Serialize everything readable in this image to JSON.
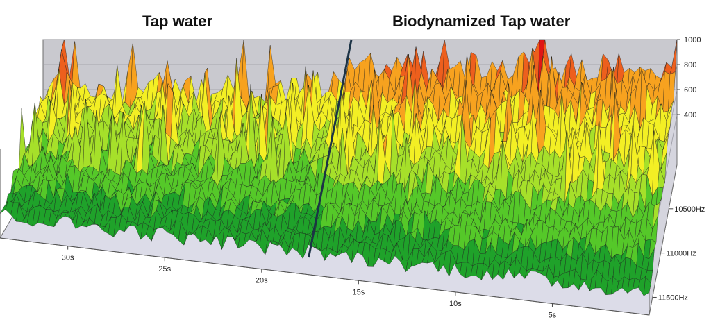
{
  "panels": {
    "left_title": "Tap water",
    "right_title": "Biodynamized Tap water"
  },
  "chart_data": {
    "type": "surface",
    "title": "",
    "xlabel": "",
    "ylabel": "",
    "zlabel": "",
    "time_ticks": [
      "30s",
      "25s",
      "20s",
      "15s",
      "10s",
      "5s"
    ],
    "time_tick_values": [
      30,
      25,
      20,
      15,
      10,
      5
    ],
    "time_range": [
      33.5,
      0
    ],
    "freq_ticks": [
      "10500Hz",
      "11000Hz",
      "11500Hz"
    ],
    "freq_tick_values": [
      10500,
      11000,
      11500
    ],
    "freq_range": [
      10000,
      11700
    ],
    "amplitude_ticks": [
      "400",
      "600",
      "800",
      "1000"
    ],
    "amplitude_tick_values": [
      400,
      600,
      800,
      1000
    ],
    "amplitude_range": [
      0,
      1000
    ],
    "divider_time": 17.5,
    "regions": [
      {
        "name": "Tap water",
        "time_range": [
          33.5,
          17.5
        ],
        "typical_peak_amplitude": 620
      },
      {
        "name": "Biodynamized Tap water",
        "time_range": [
          17.5,
          0
        ],
        "typical_peak_amplitude": 780
      }
    ],
    "colorscale": [
      "#1fa22a",
      "#55c829",
      "#a6e02a",
      "#f3ef24",
      "#f7a21f",
      "#ed5f1d",
      "#e01616"
    ],
    "grid": true
  }
}
